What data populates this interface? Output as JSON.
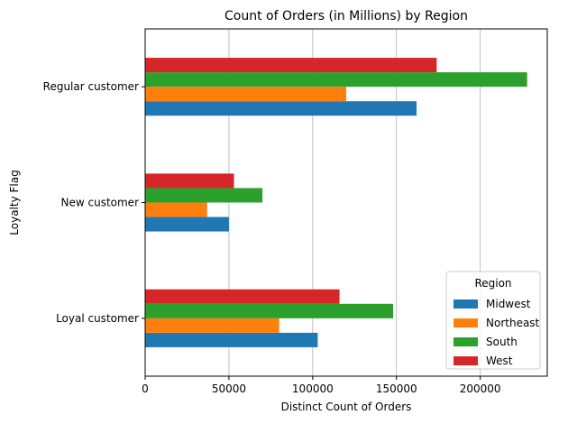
{
  "chart_data": {
    "type": "bar",
    "orientation": "horizontal",
    "title": "Count of Orders (in Millions) by Region",
    "xlabel": "Distinct Count of Orders",
    "ylabel": "Loyalty Flag",
    "categories": [
      "Loyal customer",
      "New customer",
      "Regular customer"
    ],
    "series": [
      {
        "name": "Midwest",
        "color": "#1f77b4",
        "values": [
          103000,
          50000,
          162000
        ]
      },
      {
        "name": "Northeast",
        "color": "#ff7f0e",
        "values": [
          80000,
          37000,
          120000
        ]
      },
      {
        "name": "South",
        "color": "#2ca02c",
        "values": [
          148000,
          70000,
          228000
        ]
      },
      {
        "name": "West",
        "color": "#d62728",
        "values": [
          116000,
          53000,
          174000
        ]
      }
    ],
    "xlim": [
      0,
      240000
    ],
    "xticks": [
      0,
      50000,
      100000,
      150000,
      200000
    ],
    "xtick_labels": [
      "0",
      "50000",
      "100000",
      "150000",
      "200000"
    ],
    "grid": "x",
    "legend": {
      "title": "Region",
      "placement": "lower right"
    }
  }
}
